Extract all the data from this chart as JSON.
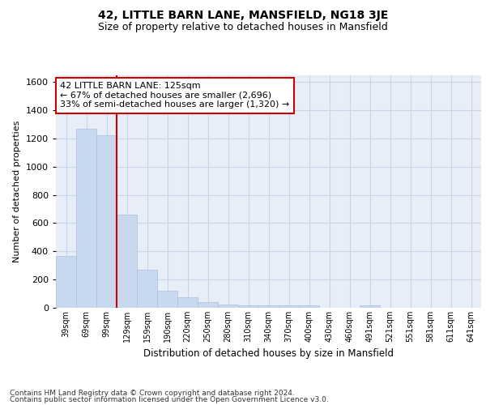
{
  "title": "42, LITTLE BARN LANE, MANSFIELD, NG18 3JE",
  "subtitle": "Size of property relative to detached houses in Mansfield",
  "xlabel": "Distribution of detached houses by size in Mansfield",
  "ylabel": "Number of detached properties",
  "categories": [
    "39sqm",
    "69sqm",
    "99sqm",
    "129sqm",
    "159sqm",
    "190sqm",
    "220sqm",
    "250sqm",
    "280sqm",
    "310sqm",
    "340sqm",
    "370sqm",
    "400sqm",
    "430sqm",
    "460sqm",
    "491sqm",
    "521sqm",
    "551sqm",
    "581sqm",
    "611sqm",
    "641sqm"
  ],
  "values": [
    370,
    1270,
    1220,
    660,
    270,
    120,
    75,
    40,
    25,
    20,
    15,
    15,
    15,
    0,
    0,
    20,
    0,
    0,
    0,
    0,
    0
  ],
  "bar_color": "#c8d8ee",
  "bar_edge_color": "#a8c0e0",
  "red_line_index": 3,
  "annotation_line1": "42 LITTLE BARN LANE: 125sqm",
  "annotation_line2": "← 67% of detached houses are smaller (2,696)",
  "annotation_line3": "33% of semi-detached houses are larger (1,320) →",
  "annotation_box_color": "white",
  "annotation_box_edge_color": "#cc0000",
  "red_line_color": "#cc0000",
  "ylim": [
    0,
    1650
  ],
  "yticks": [
    0,
    200,
    400,
    600,
    800,
    1000,
    1200,
    1400,
    1600
  ],
  "grid_color": "#c8d4e8",
  "background_color": "#e8eef8",
  "footer_line1": "Contains HM Land Registry data © Crown copyright and database right 2024.",
  "footer_line2": "Contains public sector information licensed under the Open Government Licence v3.0.",
  "title_fontsize": 10,
  "subtitle_fontsize": 9,
  "xlabel_fontsize": 8.5,
  "ylabel_fontsize": 8,
  "footer_fontsize": 6.5,
  "annotation_fontsize": 8
}
